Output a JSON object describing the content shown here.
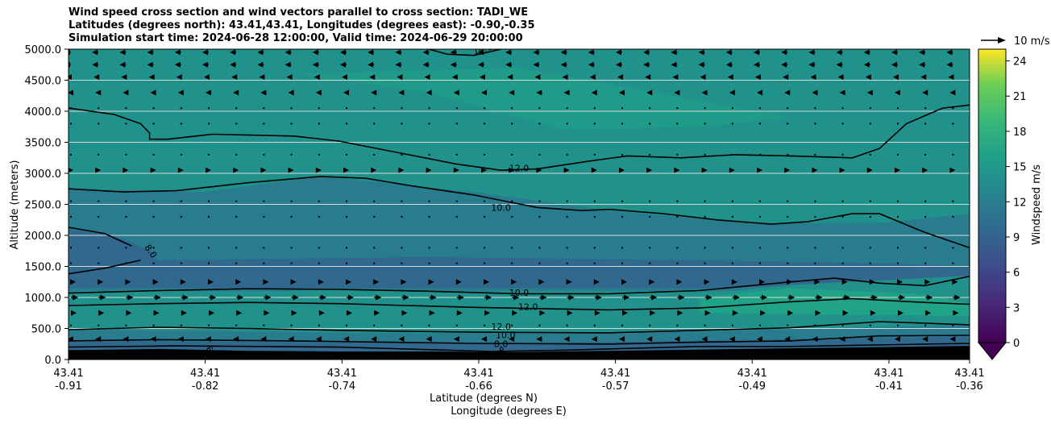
{
  "title": {
    "line1": "Wind speed cross section and wind vectors parallel to cross section: TADI_WE",
    "line2": "Latitudes (degrees north): 43.41,43.41, Longitudes (degrees east): -0.90,-0.35",
    "line3": "Simulation start time: 2024-06-28 12:00:00, Valid time: 2024-06-29 20:00:00"
  },
  "chart_data": {
    "type": "contourf",
    "ylabel": "Altitude (meters)",
    "xlabel_line1": "Latitude (degrees N)",
    "xlabel_line2": "Longitude (degrees E)",
    "ylim": [
      0,
      5000
    ],
    "yticks": [
      "0.0",
      "500.0",
      "1000.0",
      "1500.0",
      "2000.0",
      "2500.0",
      "3000.0",
      "3500.0",
      "4000.0",
      "4500.0",
      "5000.0"
    ],
    "x_ticks": [
      {
        "lat": "43.41",
        "lon": "-0.91"
      },
      {
        "lat": "43.41",
        "lon": "-0.82"
      },
      {
        "lat": "43.41",
        "lon": "-0.74"
      },
      {
        "lat": "43.41",
        "lon": "-0.66"
      },
      {
        "lat": "43.41",
        "lon": "-0.57"
      },
      {
        "lat": "43.41",
        "lon": "-0.49"
      },
      {
        "lat": "43.41",
        "lon": "-0.41"
      },
      {
        "lat": "43.41",
        "lon": "-0.36"
      }
    ],
    "colorbar": {
      "label": "Windspeed m/s",
      "range": [
        0,
        25
      ],
      "ticks": [
        "0",
        "3",
        "6",
        "9",
        "12",
        "15",
        "18",
        "21",
        "24"
      ],
      "extend": "min"
    },
    "quiver_key": "10 m/s",
    "contour_labels": [
      "14.0",
      "12.0",
      "10.0",
      "8.0",
      "10.0",
      "12.0",
      "12.0",
      "10.0",
      "8.0",
      "6",
      "8"
    ],
    "colors": {
      "c0": "#440154",
      "c3": "#472d7b",
      "c6": "#3b528b",
      "c8": "#31688e",
      "c10": "#287c8e",
      "c12": "#21918c",
      "c14": "#20a386",
      "c16": "#35b779",
      "c18": "#5ec962",
      "c20": "#90d743",
      "c22": "#c8e020",
      "c25": "#fde725",
      "terrain": "#000000"
    }
  }
}
